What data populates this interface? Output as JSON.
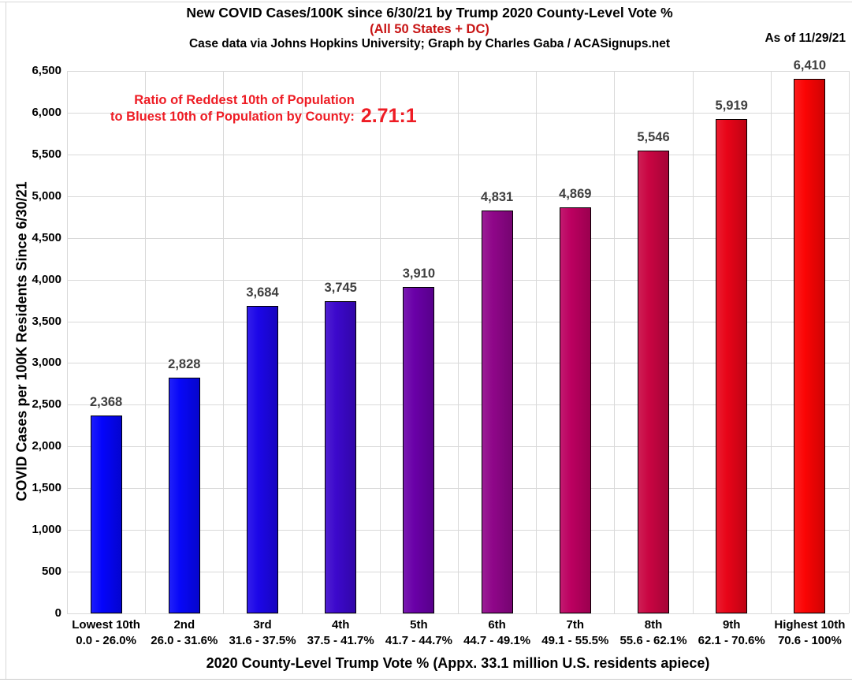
{
  "header": {
    "title": "New COVID Cases/100K since 6/30/21 by Trump 2020 County-Level Vote %",
    "subtitle": "(All 50 States + DC)",
    "subtitle_color": "#c81414",
    "credit": "Case data via Johns Hopkins University; Graph by Charles Gaba / ACASignups.net",
    "as_of": "As of 11/29/21"
  },
  "annotation": {
    "line1": "Ratio of Reddest 10th of Population",
    "line2": "to Bluest 10th of Population by County:",
    "ratio": "2.71:1",
    "color": "#ee1c24"
  },
  "chart_data": {
    "type": "bar",
    "title": "New COVID Cases/100K since 6/30/21 by Trump 2020 County-Level Vote %",
    "xlabel": "2020 County-Level Trump Vote % (Appx. 33.1 million U.S. residents apiece)",
    "ylabel": "COVID Cases per 100K Residents Since 6/30/21",
    "ylim": [
      0,
      6500
    ],
    "ytick_step": 500,
    "grid": true,
    "gridline_color": "#d9d9d9",
    "categories": [
      "Lowest 10th",
      "2nd",
      "3rd",
      "4th",
      "5th",
      "6th",
      "7th",
      "8th",
      "9th",
      "Highest 10th"
    ],
    "category_sublabels": [
      "0.0 - 26.0%",
      "26.0 - 31.6%",
      "31.6 - 37.5%",
      "37.5 - 41.7%",
      "41.7 - 44.7%",
      "44.7 - 49.1%",
      "49.1 - 55.5%",
      "55.6 - 62.1%",
      "62.1 - 70.6%",
      "70.6 - 100%"
    ],
    "values": [
      2368,
      2828,
      3684,
      3745,
      3910,
      4831,
      4869,
      5546,
      5919,
      6410
    ],
    "value_labels": [
      "2,368",
      "2,828",
      "3,684",
      "3,745",
      "3,910",
      "4,831",
      "4,869",
      "5,546",
      "5,919",
      "6,410"
    ],
    "bar_colors": [
      "#0404fc",
      "#0707f8",
      "#1c06e8",
      "#3c08cc",
      "#6a00a8",
      "#8f0689",
      "#bc0060",
      "#c90542",
      "#e80418",
      "#fb0404"
    ],
    "bar_border_color": "#000000",
    "value_label_color": "#3f3f3f"
  }
}
